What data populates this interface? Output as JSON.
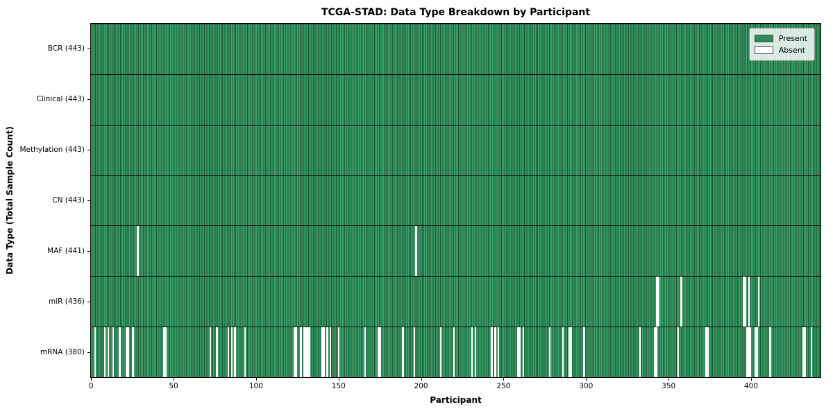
{
  "chart_data": {
    "type": "heatmap",
    "title": "TCGA-STAD: Data Type Breakdown by Participant",
    "xlabel": "Participant",
    "ylabel": "Data Type (Total Sample Count)",
    "n_participants": 443,
    "x_ticks": [
      0,
      50,
      100,
      150,
      200,
      250,
      300,
      350,
      400
    ],
    "grid": false,
    "legend_position": "upper right",
    "legend": [
      {
        "label": "Present",
        "color": "#2e8b57"
      },
      {
        "label": "Absent",
        "color": "#ffffff"
      }
    ],
    "colors": {
      "present_fill": "#3aa169",
      "present_edge": "#1e5c38",
      "absent": "#ffffff",
      "legend_present_swatch": "#2e8b57",
      "legend_absent_swatch": "#ffffff"
    },
    "rows": [
      {
        "data_type": "BCR",
        "label": "BCR (443)",
        "present_count": 443,
        "absent_participants": []
      },
      {
        "data_type": "Clinical",
        "label": "Clinical (443)",
        "present_count": 443,
        "absent_participants": []
      },
      {
        "data_type": "Methylation",
        "label": "Methylation (443)",
        "present_count": 443,
        "absent_participants": []
      },
      {
        "data_type": "CN",
        "label": "CN (443)",
        "present_count": 443,
        "absent_participants": []
      },
      {
        "data_type": "MAF",
        "label": "MAF (441)",
        "present_count": 441,
        "absent_participants": [
          28,
          197
        ]
      },
      {
        "data_type": "miR",
        "label": "miR (436)",
        "present_count": 436,
        "absent_participants": [
          343,
          344,
          358,
          396,
          397,
          399,
          405
        ]
      },
      {
        "data_type": "mRNA",
        "label": "mRNA (380)",
        "present_count": 380,
        "absent_participants": [
          2,
          8,
          10,
          13,
          17,
          21,
          22,
          25,
          44,
          45,
          72,
          76,
          83,
          85,
          87,
          93,
          123,
          124,
          127,
          129,
          130,
          131,
          132,
          140,
          141,
          143,
          145,
          150,
          166,
          174,
          175,
          189,
          196,
          212,
          220,
          231,
          233,
          243,
          245,
          247,
          259,
          260,
          262,
          278,
          286,
          290,
          291,
          299,
          333,
          342,
          343,
          356,
          373,
          374,
          398,
          399,
          400,
          403,
          404,
          412,
          432,
          433,
          437
        ]
      }
    ]
  }
}
